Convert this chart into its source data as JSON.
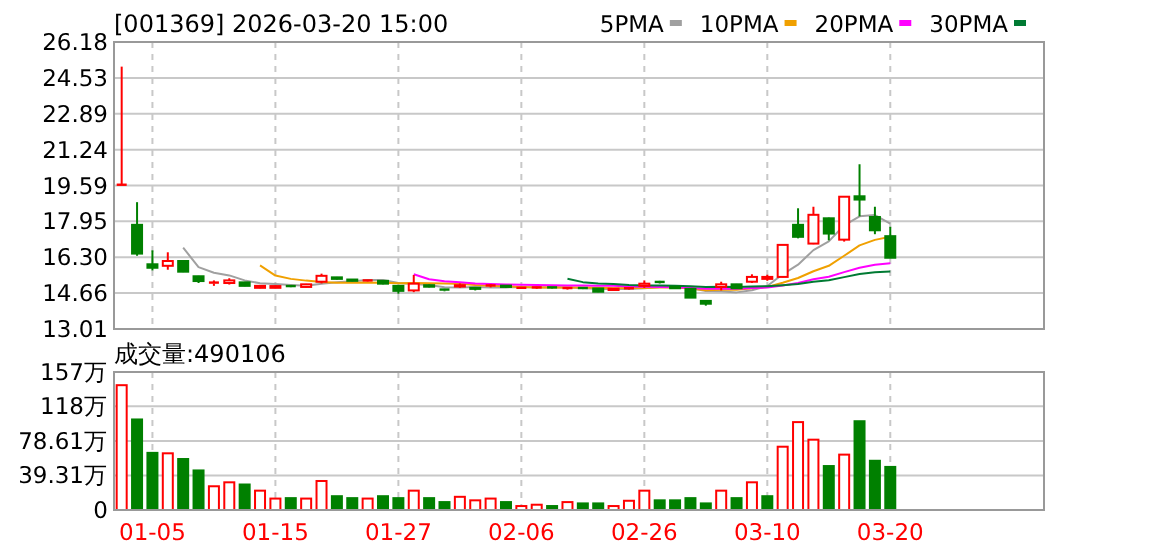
{
  "chart_data": [
    {
      "type": "candlestick",
      "title": "[001369] 2026-03-20 15:00",
      "legend": "top right",
      "grid": true,
      "tick_labels": "y",
      "categories": [
        null,
        null,
        null,
        null,
        null,
        null,
        null,
        null,
        null,
        null,
        null,
        null,
        null,
        null,
        null,
        null,
        null,
        null,
        null,
        null,
        null,
        null,
        null,
        null,
        null,
        null,
        null,
        null,
        null,
        null,
        null,
        null,
        null,
        null,
        null,
        null,
        null,
        null,
        null,
        null,
        null,
        null,
        null,
        null,
        null,
        null,
        null,
        null,
        null,
        null,
        null
      ],
      "ylim": [
        13.01,
        26.18
      ],
      "yticks": [
        13.01,
        14.66,
        {
          "value": 16.3,
          "label": "16.30"
        },
        17.95,
        19.59,
        21.24,
        22.89,
        24.53,
        26.18
      ],
      "ohlc": [
        [
          19.63,
          25.05,
          19.63,
          19.63
        ],
        [
          17.79,
          18.83,
          16.37,
          16.47
        ],
        [
          15.98,
          16.62,
          15.7,
          15.82
        ],
        [
          15.91,
          16.53,
          15.73,
          16.13
        ],
        [
          16.13,
          16.15,
          15.62,
          15.64
        ],
        [
          15.43,
          15.45,
          15.12,
          15.21
        ],
        [
          15.1,
          15.24,
          14.99,
          15.14
        ],
        [
          15.12,
          15.34,
          15.05,
          15.24
        ],
        [
          15.15,
          15.17,
          14.97,
          14.99
        ],
        [
          14.9,
          15.02,
          14.88,
          14.99
        ],
        [
          14.9,
          15.0,
          14.88,
          14.98
        ],
        [
          14.98,
          15.0,
          14.93,
          14.95
        ],
        [
          14.94,
          15.08,
          14.92,
          15.06
        ],
        [
          15.18,
          15.55,
          15.1,
          15.45
        ],
        [
          15.38,
          15.4,
          15.28,
          15.31
        ],
        [
          15.28,
          15.3,
          15.2,
          15.22
        ],
        [
          15.2,
          15.25,
          15.18,
          15.24
        ],
        [
          15.22,
          15.24,
          15.06,
          15.09
        ],
        [
          14.99,
          15.02,
          14.63,
          14.76
        ],
        [
          14.78,
          15.49,
          14.7,
          15.09
        ],
        [
          15.02,
          15.05,
          14.92,
          14.95
        ],
        [
          14.82,
          14.85,
          14.74,
          14.78
        ],
        [
          14.96,
          15.1,
          14.9,
          15.02
        ],
        [
          14.9,
          14.92,
          14.78,
          14.85
        ],
        [
          14.98,
          15.06,
          14.92,
          15.01
        ],
        [
          15.0,
          15.02,
          14.9,
          14.94
        ],
        [
          14.88,
          14.94,
          14.85,
          14.9
        ],
        [
          14.9,
          14.95,
          14.86,
          14.92
        ],
        [
          14.92,
          14.94,
          14.86,
          14.88
        ],
        [
          14.86,
          14.92,
          14.82,
          14.89
        ],
        [
          14.89,
          14.91,
          14.84,
          14.86
        ],
        [
          14.87,
          14.89,
          14.7,
          14.72
        ],
        [
          14.8,
          14.88,
          14.78,
          14.86
        ],
        [
          14.86,
          14.9,
          14.82,
          14.88
        ],
        [
          14.99,
          15.24,
          14.9,
          15.09
        ],
        [
          15.17,
          15.22,
          15.1,
          15.14
        ],
        [
          14.95,
          14.97,
          14.85,
          14.88
        ],
        [
          14.85,
          14.87,
          14.44,
          14.45
        ],
        [
          14.3,
          14.32,
          14.08,
          14.17
        ],
        [
          14.94,
          15.18,
          14.78,
          15.06
        ],
        [
          15.06,
          15.08,
          14.86,
          14.88
        ],
        [
          15.18,
          15.52,
          15.12,
          15.4
        ],
        [
          15.31,
          15.5,
          15.22,
          15.4
        ],
        [
          15.4,
          16.87,
          15.38,
          16.87
        ],
        [
          17.79,
          18.55,
          17.17,
          17.24
        ],
        [
          16.93,
          18.62,
          16.9,
          18.25
        ],
        [
          18.09,
          18.12,
          17.08,
          17.39
        ],
        [
          17.11,
          19.08,
          17.02,
          19.08
        ],
        [
          19.1,
          20.57,
          18.18,
          18.95
        ],
        [
          18.15,
          18.62,
          17.36,
          17.54
        ],
        [
          17.27,
          17.7,
          16.28,
          16.28
        ]
      ],
      "colors": [
        "#ff0000",
        "#008000",
        "#008000",
        "#ff0000",
        "#008000",
        "#008000",
        "#ff0000",
        "#ff0000",
        "#008000",
        "#ff0000",
        "#ff0000",
        "#008000",
        "#ff0000",
        "#ff0000",
        "#008000",
        "#008000",
        "#ff0000",
        "#008000",
        "#008000",
        "#ff0000",
        "#008000",
        "#008000",
        "#ff0000",
        "#008000",
        "#ff0000",
        "#008000",
        "#ff0000",
        "#ff0000",
        "#008000",
        "#ff0000",
        "#008000",
        "#008000",
        "#ff0000",
        "#ff0000",
        "#ff0000",
        "#008000",
        "#008000",
        "#008000",
        "#008000",
        "#ff0000",
        "#008000",
        "#ff0000",
        "#ff0000",
        "#ff0000",
        "#008000",
        "#ff0000",
        "#008000",
        "#ff0000",
        "#008000",
        "#008000",
        "#008000"
      ],
      "series": [
        {
          "name": "5PMA",
          "type": "line",
          "color": "#a0a0a0",
          "values": [
            null,
            null,
            null,
            null,
            16.74,
            15.85,
            15.59,
            15.47,
            15.24,
            15.11,
            15.07,
            15.03,
            14.99,
            15.09,
            15.15,
            15.2,
            15.26,
            15.26,
            15.12,
            15.08,
            15.03,
            14.93,
            14.92,
            14.94,
            14.92,
            14.92,
            14.94,
            14.92,
            14.93,
            14.91,
            14.89,
            14.85,
            14.84,
            14.84,
            14.88,
            14.94,
            14.97,
            14.89,
            14.75,
            14.74,
            14.69,
            14.79,
            14.98,
            15.52,
            15.96,
            16.63,
            17.03,
            17.77,
            18.18,
            18.24,
            17.85
          ]
        },
        {
          "name": "10PMA",
          "type": "line",
          "color": "#f0a000",
          "values": [
            null,
            null,
            null,
            null,
            null,
            null,
            null,
            null,
            null,
            15.93,
            15.46,
            15.31,
            15.23,
            15.17,
            15.13,
            15.13,
            15.14,
            15.13,
            15.11,
            15.12,
            15.11,
            15.1,
            15.09,
            15.03,
            15.0,
            14.97,
            14.94,
            14.92,
            14.93,
            14.91,
            14.91,
            14.9,
            14.88,
            14.89,
            14.89,
            14.91,
            14.91,
            14.87,
            14.79,
            14.81,
            14.81,
            14.88,
            14.94,
            15.13,
            15.35,
            15.66,
            15.91,
            16.37,
            16.85,
            17.1,
            17.24
          ]
        },
        {
          "name": "20PMA",
          "type": "line",
          "color": "#ff00ff",
          "values": [
            null,
            null,
            null,
            null,
            null,
            null,
            null,
            null,
            null,
            null,
            null,
            null,
            null,
            null,
            null,
            null,
            null,
            null,
            null,
            15.52,
            15.29,
            15.2,
            15.16,
            15.1,
            15.07,
            15.05,
            15.04,
            15.03,
            15.02,
            15.01,
            15.01,
            15.0,
            14.99,
            14.96,
            14.95,
            14.94,
            14.93,
            14.89,
            14.86,
            14.86,
            14.86,
            14.89,
            14.91,
            15.01,
            15.12,
            15.29,
            15.41,
            15.62,
            15.82,
            15.96,
            16.03
          ]
        },
        {
          "name": "30PMA",
          "type": "line",
          "color": "#007a33",
          "values": [
            null,
            null,
            null,
            null,
            null,
            null,
            null,
            null,
            null,
            null,
            null,
            null,
            null,
            null,
            null,
            null,
            null,
            null,
            null,
            null,
            null,
            null,
            null,
            null,
            null,
            null,
            null,
            null,
            null,
            15.32,
            15.16,
            15.1,
            15.07,
            15.03,
            15.01,
            15.01,
            15.0,
            14.97,
            14.94,
            14.95,
            14.94,
            14.96,
            14.97,
            15.02,
            15.08,
            15.18,
            15.25,
            15.39,
            15.53,
            15.61,
            15.65
          ]
        }
      ]
    },
    {
      "type": "bar",
      "title": "成交量:490106",
      "grid": true,
      "categories": [
        null,
        null,
        "01-05",
        null,
        null,
        null,
        null,
        null,
        null,
        null,
        "01-15",
        null,
        null,
        null,
        null,
        null,
        null,
        null,
        "01-27",
        null,
        null,
        null,
        null,
        null,
        null,
        null,
        "02-06",
        null,
        null,
        null,
        null,
        null,
        null,
        null,
        "02-26",
        null,
        null,
        null,
        null,
        null,
        null,
        null,
        "03-10",
        null,
        null,
        null,
        null,
        null,
        null,
        null,
        "03-20"
      ],
      "ylim": [
        0,
        157
      ],
      "yticks": [
        0,
        {
          "value": 39.31,
          "label": "39.31万"
        },
        {
          "value": 78.61,
          "label": "78.61万"
        },
        {
          "value": 118,
          "label": "118万"
        },
        {
          "value": 157,
          "label": "157万"
        }
      ],
      "values": [
        142,
        103,
        65,
        64.5,
        58,
        45,
        27,
        31.5,
        29,
        22,
        13,
        13.5,
        13,
        33,
        15.7,
        13.5,
        13,
        15.7,
        13.5,
        22,
        13.5,
        9,
        15,
        11,
        13,
        9,
        4.5,
        6,
        4.5,
        9,
        7.5,
        7.5,
        4.5,
        10.5,
        22,
        11,
        11,
        13.5,
        7.5,
        22,
        13.5,
        31.5,
        15.7,
        72,
        100,
        80,
        50,
        63,
        101,
        56,
        49.01
      ],
      "colors": [
        "#ff0000",
        "#008000",
        "#008000",
        "#ff0000",
        "#008000",
        "#008000",
        "#ff0000",
        "#ff0000",
        "#008000",
        "#ff0000",
        "#ff0000",
        "#008000",
        "#ff0000",
        "#ff0000",
        "#008000",
        "#008000",
        "#ff0000",
        "#008000",
        "#008000",
        "#ff0000",
        "#008000",
        "#008000",
        "#ff0000",
        "#ff0000",
        "#ff0000",
        "#008000",
        "#ff0000",
        "#ff0000",
        "#008000",
        "#ff0000",
        "#008000",
        "#008000",
        "#ff0000",
        "#ff0000",
        "#ff0000",
        "#008000",
        "#008000",
        "#008000",
        "#008000",
        "#ff0000",
        "#008000",
        "#ff0000",
        "#008000",
        "#ff0000",
        "#ff0000",
        "#ff0000",
        "#008000",
        "#ff0000",
        "#008000",
        "#008000",
        "#008000"
      ]
    }
  ]
}
